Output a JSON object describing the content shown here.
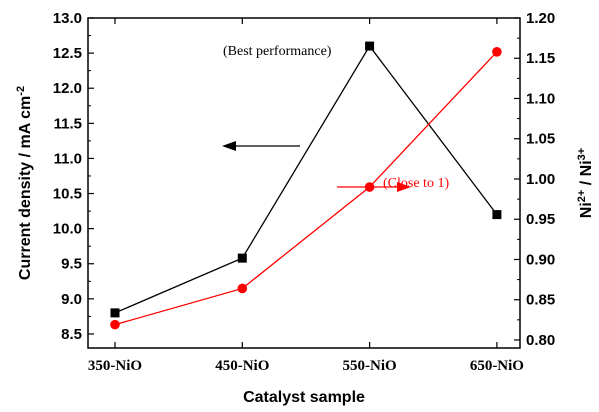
{
  "chart_data": {
    "type": "line",
    "xlabel": "Catalyst sample",
    "categories": [
      "350-NiO",
      "450-NiO",
      "550-NiO",
      "650-NiO"
    ],
    "y_left": {
      "label": "Current density / mA cm",
      "label_sup": "-2",
      "ylim": [
        8.3,
        13.0
      ],
      "ticks": [
        "8.5",
        "9.0",
        "9.5",
        "10.0",
        "10.5",
        "11.0",
        "11.5",
        "12.0",
        "12.5",
        "13.0"
      ]
    },
    "y_right": {
      "label_parts": [
        "Ni",
        "2+",
        " / Ni",
        "3+"
      ],
      "ylim": [
        0.79,
        1.2
      ],
      "ticks": [
        "0.80",
        "0.85",
        "0.90",
        "0.95",
        "1.00",
        "1.05",
        "1.10",
        "1.15",
        "1.20"
      ]
    },
    "series": [
      {
        "axis": "left",
        "color": "#000000",
        "marker": "square",
        "values": [
          8.8,
          9.58,
          12.6,
          10.2
        ]
      },
      {
        "axis": "right",
        "color": "#ff0000",
        "marker": "circle",
        "values": [
          0.819,
          0.864,
          0.99,
          1.158
        ]
      }
    ],
    "annotations": {
      "best_performance": "(Best performance)",
      "close_to_1": "(Close to 1)"
    },
    "grid": false
  }
}
